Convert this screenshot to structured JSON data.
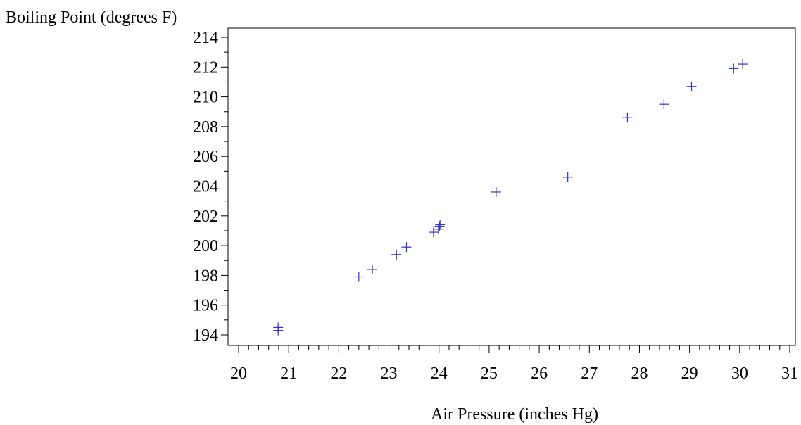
{
  "chart_data": {
    "type": "scatter",
    "xlabel": "Air Pressure (inches Hg)",
    "ylabel": "Boiling Point (degrees F)",
    "xlim": [
      20,
      31
    ],
    "ylim": [
      193.6,
      214.4
    ],
    "x_ticks": [
      20,
      21,
      22,
      23,
      24,
      25,
      26,
      27,
      28,
      29,
      30,
      31
    ],
    "y_ticks": [
      194,
      196,
      198,
      200,
      202,
      204,
      206,
      208,
      210,
      212,
      214
    ],
    "x_minor_step": 0.2,
    "y_minor_step": 1,
    "marker": "plus",
    "marker_color": "#3333cc",
    "grid": false,
    "legend": "none",
    "series": [
      {
        "points": [
          {
            "x": 20.79,
            "y": 194.5
          },
          {
            "x": 20.79,
            "y": 194.3
          },
          {
            "x": 22.4,
            "y": 197.9
          },
          {
            "x": 22.67,
            "y": 198.4
          },
          {
            "x": 23.15,
            "y": 199.4
          },
          {
            "x": 23.35,
            "y": 199.9
          },
          {
            "x": 23.89,
            "y": 200.9
          },
          {
            "x": 23.99,
            "y": 201.1
          },
          {
            "x": 24.02,
            "y": 201.4
          },
          {
            "x": 24.01,
            "y": 201.3
          },
          {
            "x": 25.14,
            "y": 203.6
          },
          {
            "x": 26.57,
            "y": 204.6
          },
          {
            "x": 27.76,
            "y": 208.6
          },
          {
            "x": 28.49,
            "y": 209.5
          },
          {
            "x": 29.04,
            "y": 210.7
          },
          {
            "x": 29.88,
            "y": 211.9
          },
          {
            "x": 30.06,
            "y": 212.2
          }
        ]
      }
    ]
  }
}
